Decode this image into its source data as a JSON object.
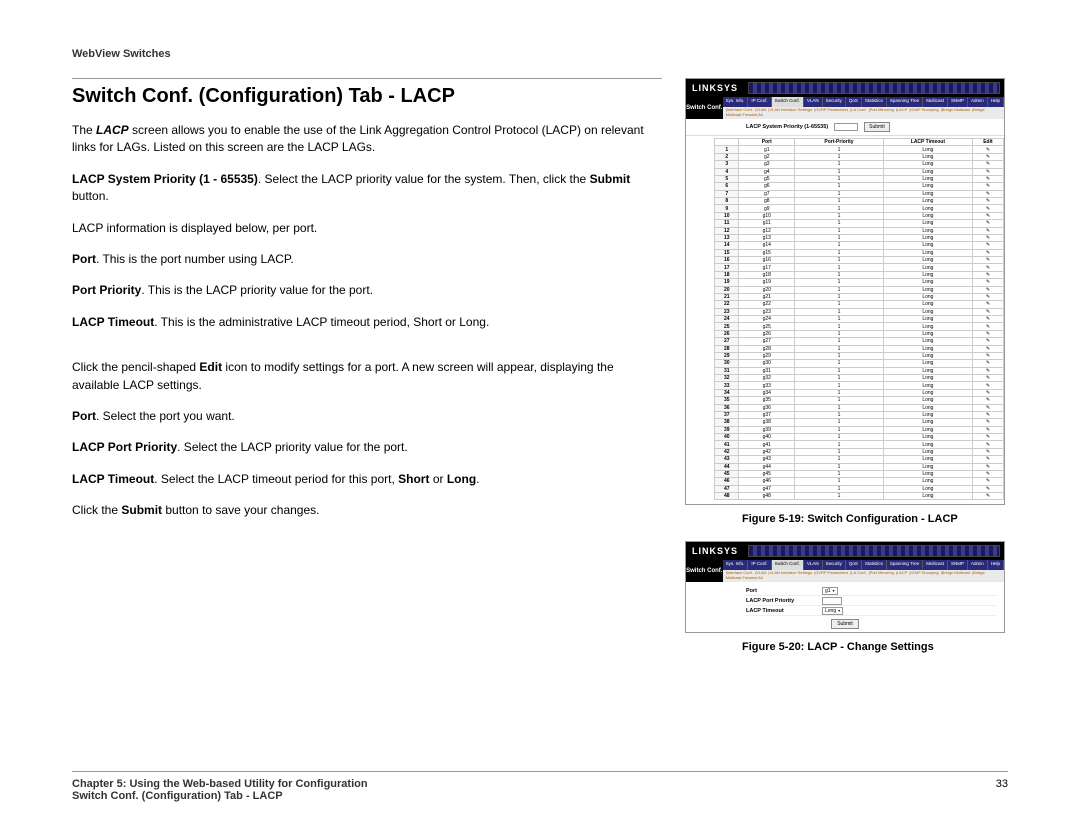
{
  "header": "WebView Switches",
  "title": "Switch Conf. (Configuration) Tab - LACP",
  "p1_a": "The ",
  "p1_b": "LACP",
  "p1_c": " screen allows you to enable the use of the Link Aggregation Control Protocol (LACP) on relevant links for LAGs. Listed on this screen are the LACP LAGs.",
  "p2_a": "LACP System Priority (1 - 65535)",
  "p2_b": ". Select the LACP priority value for the system. Then, click the ",
  "p2_c": "Submit",
  "p2_d": " button.",
  "p3": "LACP information is displayed below, per port.",
  "p4_a": "Port",
  "p4_b": ". This is the port number using LACP.",
  "p5_a": "Port Priority",
  "p5_b": ". This is the LACP priority value for the port.",
  "p6_a": "LACP Timeout",
  "p6_b": ". This is the administrative LACP timeout period, Short or Long.",
  "p7_a": "Click the pencil-shaped ",
  "p7_b": "Edit",
  "p7_c": " icon to modify settings for a port. A new screen will appear, displaying the available LACP settings.",
  "p8_a": "Port",
  "p8_b": ". Select the port you want.",
  "p9_a": "LACP Port Priority",
  "p9_b": ". Select the LACP priority value for the port.",
  "p10_a": "LACP Timeout",
  "p10_b": ". Select the LACP timeout period for this port, ",
  "p10_c": "Short",
  "p10_d": " or ",
  "p10_e": "Long",
  "p10_f": ".",
  "p11_a": "Click the ",
  "p11_b": "Submit",
  "p11_c": " button to save your changes.",
  "caption1": "Figure 5-19: Switch Configuration - LACP",
  "caption2": "Figure 5-20: LACP - Change Settings",
  "footer1": "Chapter 5: Using the Web-based Utility for Configuration",
  "footer2": "Switch Conf. (Configuration) Tab - LACP",
  "page_num": "33",
  "shot": {
    "logo": "LINKSYS",
    "nav_label": "Switch Conf.",
    "tabs": [
      "Sys. Info.",
      "IP Conf.",
      "Switch Conf.",
      "VLAN",
      "Security",
      "QoS",
      "Statistics",
      "Spanning Tree",
      "Multicast",
      "SNMP",
      "Admin",
      "Help"
    ],
    "links": [
      "Interface Conf.",
      "VLAN",
      "VLAN Interface Settings",
      "GVRP Parameters",
      "LA Conf.",
      "Port Mirroring",
      "LACP",
      "IGMP Snooping",
      "Bridge Multicast",
      "Bridge Multicast Forward All"
    ],
    "sys_prio_label": "LACP System Priority (1-65535)",
    "submit": "Submit",
    "table": {
      "headers": [
        "",
        "Port",
        "Port-Priority",
        "LACP Timeout",
        "Edit"
      ],
      "port_prefix": "g",
      "priority": "1",
      "timeout": "Long",
      "rows": 48
    },
    "edit_fields": {
      "port_label": "Port",
      "port_value": "g1",
      "prio_label": "LACP Port Priority",
      "prio_value": "1",
      "timeout_label": "LACP Timeout",
      "timeout_value": "Long"
    }
  },
  "colors": {
    "text": "#000000",
    "border": "#999999",
    "nav_bg": "#000000",
    "tab_bg": "#2a2a7a",
    "link_color": "#b05a00"
  }
}
